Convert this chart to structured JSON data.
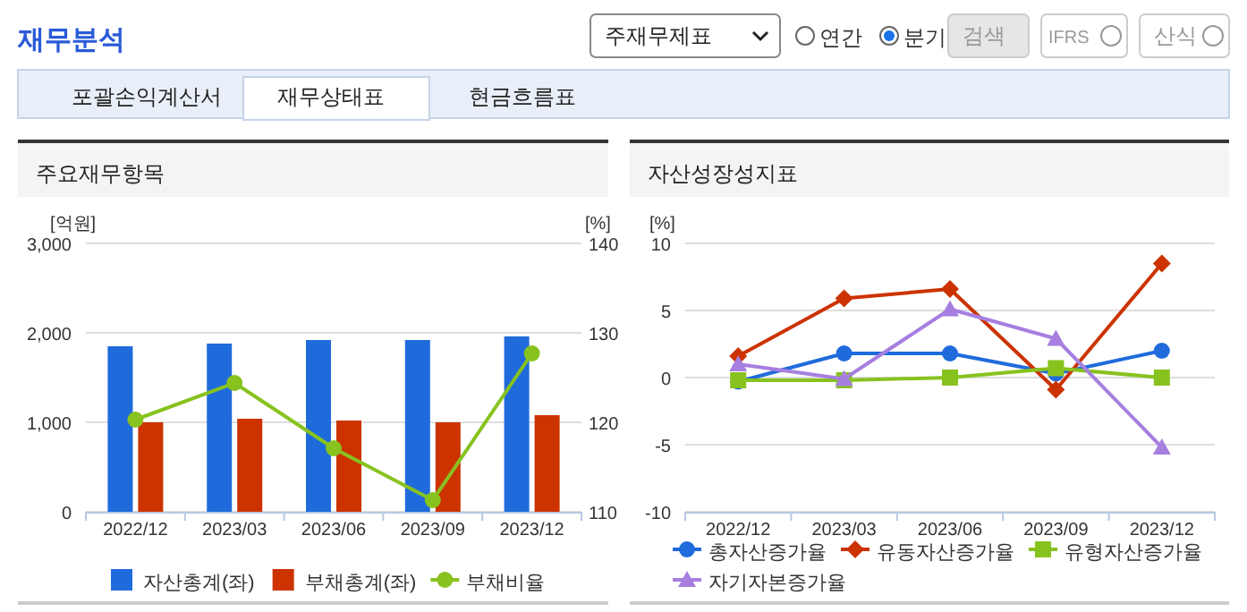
{
  "chart_data": [
    {
      "type": "other",
      "title": "재무분석",
      "annotations": [
        "주재무제표",
        "연간",
        "분기",
        "검색",
        "IFRS",
        "산식",
        "포괄손익계산서",
        "재무상태표",
        "현금흐름표"
      ]
    },
    {
      "type": "bar",
      "title": "주요재무항목",
      "ylabel": "[억원]",
      "y2label": "[%]",
      "categories": [
        "2022/12",
        "2023/03",
        "2023/06",
        "2023/09",
        "2023/12"
      ],
      "ylim": [
        0,
        3000
      ],
      "yticks": [
        0,
        {
          "value": 1000,
          "label": "1,000"
        },
        {
          "value": 2000,
          "label": "2,000"
        },
        {
          "value": 3000,
          "label": "3,000"
        }
      ],
      "y2lim": [
        110,
        140
      ],
      "y2ticks": [
        110,
        120,
        130,
        140
      ],
      "grid": "y",
      "legend": "bottom",
      "series": [
        {
          "name": "자산총계(좌)",
          "color": "#1f6bdc",
          "values": [
            1850,
            1880,
            1920,
            1920,
            1960
          ]
        },
        {
          "name": "부채총계(좌)",
          "color": "#cc3300",
          "values": [
            1000,
            1040,
            1020,
            1000,
            1080
          ]
        },
        {
          "name": "부채비율",
          "type": "line",
          "axis": "y2",
          "marker": "circle",
          "color": "#88c21f",
          "values": [
            120.3,
            124.4,
            117.1,
            111.3,
            127.7
          ]
        }
      ]
    },
    {
      "type": "line",
      "title": "자산성장성지표",
      "ylabel": "[%]",
      "categories": [
        "2022/12",
        "2023/03",
        "2023/06",
        "2023/09",
        "2023/12"
      ],
      "ylim": [
        -10,
        10
      ],
      "yticks": [
        -10,
        -5,
        0,
        5,
        10
      ],
      "grid": "y",
      "legend": "bottom",
      "series": [
        {
          "name": "총자산증가율",
          "marker": "circle",
          "color": "#1f6bdc",
          "values": [
            -0.3,
            1.8,
            1.8,
            0.3,
            2.0
          ]
        },
        {
          "name": "유동자산증가율",
          "marker": "diamond",
          "color": "#cc3300",
          "values": [
            1.6,
            5.9,
            6.6,
            -0.9,
            8.5
          ]
        },
        {
          "name": "유형자산증가율",
          "marker": "square",
          "color": "#88c21f",
          "values": [
            -0.2,
            -0.2,
            0,
            0.7,
            0
          ]
        },
        {
          "name": "자기자본증가율",
          "marker": "triangle",
          "color": "#a67fe0",
          "values": [
            1.0,
            -0.1,
            5.1,
            2.9,
            -5.2
          ]
        }
      ]
    }
  ]
}
